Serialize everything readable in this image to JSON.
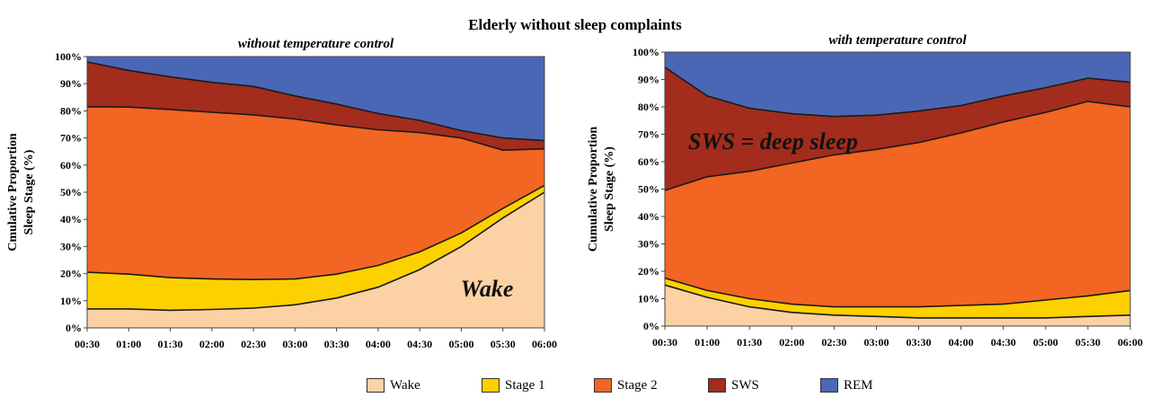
{
  "title": "Elderly without sleep complaints",
  "colors": {
    "Wake": "#fcd1a4",
    "Stage 1": "#fdd100",
    "Stage 2": "#f26522",
    "SWS": "#a32c1c",
    "REM": "#4a67b5"
  },
  "legend": [
    "Wake",
    "Stage 1",
    "Stage 2",
    "SWS",
    "REM"
  ],
  "chart_data": [
    {
      "type": "area",
      "stacked": true,
      "title": "without temperature control",
      "ylabel_lines": [
        "Cmulative Proportion",
        "Sleep Stage (%)"
      ],
      "x": [
        "00:30",
        "01:00",
        "01:30",
        "02:00",
        "02:30",
        "03:00",
        "03:30",
        "04:00",
        "04:30",
        "05:00",
        "05:30",
        "06:00"
      ],
      "yticks": [
        "0%",
        "10%",
        "20%",
        "30%",
        "40%",
        "50%",
        "60%",
        "70%",
        "80%",
        "90%",
        "100%"
      ],
      "ylim": [
        0,
        100
      ],
      "annotation": "Wake",
      "series": [
        {
          "name": "Wake",
          "values": [
            7,
            7,
            6.5,
            6.8,
            7.3,
            8.5,
            11,
            15,
            21.5,
            30,
            40.5,
            50
          ]
        },
        {
          "name": "Stage 1",
          "values": [
            13.5,
            12.8,
            12,
            11.2,
            10.5,
            9.5,
            8.8,
            8,
            6.5,
            5,
            3.5,
            2.5
          ]
        },
        {
          "name": "Stage 2",
          "values": [
            61,
            61.6,
            62,
            61.5,
            60.7,
            59,
            55,
            50,
            44,
            35,
            21.5,
            13.5
          ]
        },
        {
          "name": "SWS",
          "values": [
            16.5,
            13.5,
            12,
            11,
            10.5,
            8.5,
            7.7,
            6,
            4.5,
            2.7,
            4.5,
            3
          ]
        },
        {
          "name": "REM",
          "values": [
            2,
            5.1,
            7.5,
            9.5,
            11,
            14.5,
            17.5,
            21,
            23.5,
            27.3,
            30,
            31
          ]
        }
      ]
    },
    {
      "type": "area",
      "stacked": true,
      "title": "with temperature control",
      "ylabel_lines": [
        "Cumulative Proportion",
        "Sleep Stage (%)"
      ],
      "x": [
        "00:30",
        "01:00",
        "01:30",
        "02:00",
        "02:30",
        "03:00",
        "03:30",
        "04:00",
        "04:30",
        "05:00",
        "05:30",
        "06:00"
      ],
      "yticks": [
        "0%",
        "10%",
        "20%",
        "30%",
        "40%",
        "50%",
        "60%",
        "70%",
        "80%",
        "90%",
        "100%"
      ],
      "ylim": [
        0,
        100
      ],
      "annotation": "SWS = deep sleep",
      "series": [
        {
          "name": "Wake",
          "values": [
            15,
            10.5,
            7,
            5,
            4,
            3.5,
            3,
            3,
            3,
            3,
            3.5,
            4
          ]
        },
        {
          "name": "Stage 1",
          "values": [
            2.5,
            2.5,
            3,
            3,
            3,
            3.5,
            4,
            4.5,
            5,
            6.5,
            7.5,
            9
          ]
        },
        {
          "name": "Stage 2",
          "values": [
            32,
            41.5,
            46.5,
            51.5,
            55.5,
            57.5,
            60,
            63,
            66.5,
            68.5,
            71,
            67
          ]
        },
        {
          "name": "SWS",
          "values": [
            45,
            29.5,
            23,
            18,
            14,
            12.5,
            11.5,
            10,
            9.5,
            9,
            8.5,
            9
          ]
        },
        {
          "name": "REM",
          "values": [
            5.5,
            16,
            20.5,
            22.5,
            23.5,
            23,
            21.5,
            19.5,
            16,
            13,
            9.5,
            11
          ]
        }
      ]
    }
  ]
}
